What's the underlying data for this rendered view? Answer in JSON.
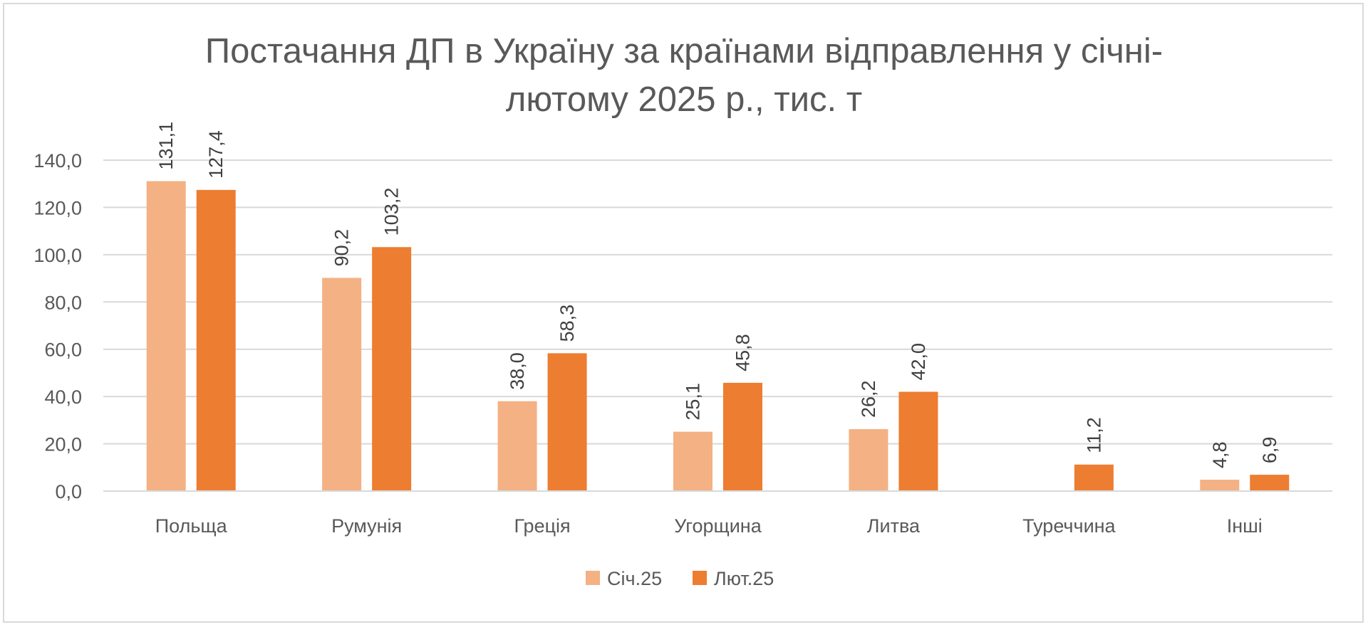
{
  "chart_data": {
    "type": "bar",
    "title": "Постачання ДП в Україну за країнами відправлення у січні-лютому 2025 р., тис. т",
    "title_lines": [
      "Постачання ДП в Україну за країнами відправлення у січні-",
      "лютому 2025 р., тис. т"
    ],
    "categories": [
      "Польща",
      "Румунія",
      "Греція",
      "Угорщина",
      "Литва",
      "Туреччина",
      "Інші"
    ],
    "series": [
      {
        "name": "Січ.25",
        "color": "#f4b183",
        "values": [
          131.1,
          90.2,
          38.0,
          25.1,
          26.2,
          null,
          4.8
        ],
        "labels": [
          "131,1",
          "90,2",
          "38,0",
          "25,1",
          "26,2",
          "",
          "4,8"
        ]
      },
      {
        "name": "Лют.25",
        "color": "#ed7d31",
        "values": [
          127.4,
          103.2,
          58.3,
          45.8,
          42.0,
          11.2,
          6.9
        ],
        "labels": [
          "127,4",
          "103,2",
          "58,3",
          "45,8",
          "42,0",
          "11,2",
          "6,9"
        ]
      }
    ],
    "ylim": [
      0,
      140
    ],
    "yticks": [
      0,
      20,
      40,
      60,
      80,
      100,
      120,
      140
    ],
    "ytick_labels": [
      "0,0",
      "20,0",
      "40,0",
      "60,0",
      "80,0",
      "100,0",
      "120,0",
      "140,0"
    ],
    "grid": true,
    "legend_position": "bottom",
    "xlabel": "",
    "ylabel": ""
  }
}
